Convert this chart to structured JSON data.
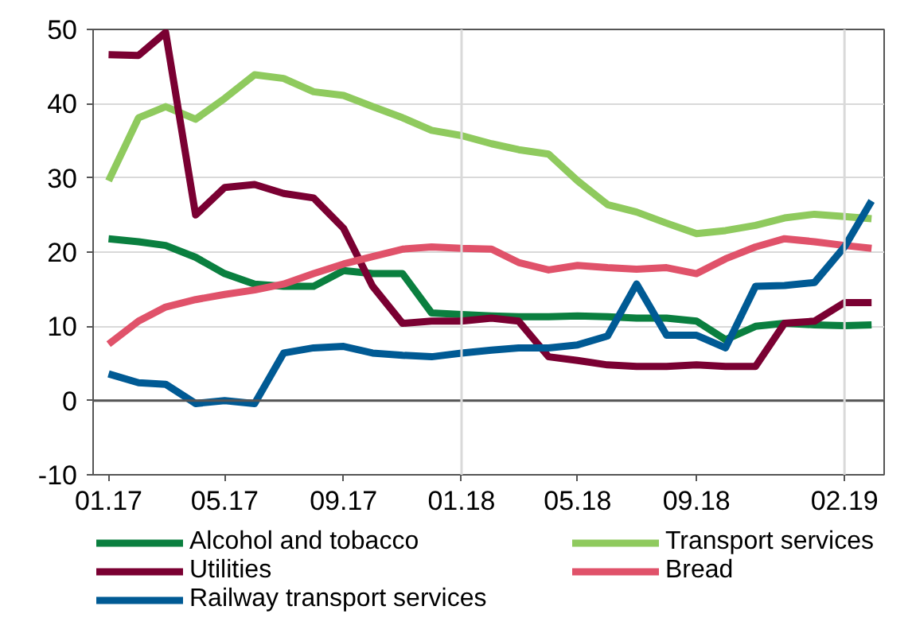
{
  "chart_data": {
    "type": "line",
    "x": [
      "2017-01",
      "2017-02",
      "2017-03",
      "2017-04",
      "2017-05",
      "2017-06",
      "2017-07",
      "2017-08",
      "2017-09",
      "2017-10",
      "2017-11",
      "2017-12",
      "2018-01",
      "2018-02",
      "2018-03",
      "2018-04",
      "2018-05",
      "2018-06",
      "2018-07",
      "2018-08",
      "2018-09",
      "2018-10",
      "2018-11",
      "2018-12",
      "2019-01",
      "2019-02",
      "2019-03"
    ],
    "xlim": [
      "2016-12-16",
      "2019-03-14"
    ],
    "xticks": [
      {
        "value": "2017-01",
        "label": "01.17"
      },
      {
        "value": "2017-05",
        "label": "05.17"
      },
      {
        "value": "2017-09",
        "label": "09.17"
      },
      {
        "value": "2018-01",
        "label": "01.18"
      },
      {
        "value": "2018-05",
        "label": "05.18"
      },
      {
        "value": "2018-09",
        "label": "09.18"
      },
      {
        "value": "2019-02",
        "label": "02.19"
      }
    ],
    "ylim": [
      -10,
      50
    ],
    "yticks": [
      -10,
      0,
      10,
      20,
      30,
      40,
      50
    ],
    "grid": "y",
    "legend": "bottom",
    "marker": "none",
    "line_style": "solid",
    "ref_lines": [
      {
        "axis": "y",
        "value": 0,
        "label": null,
        "color": "#555555"
      },
      {
        "axis": "x",
        "value": "2018-01",
        "label": null,
        "color": "#d9d9d9"
      },
      {
        "axis": "x",
        "value": "2019-02",
        "label": null,
        "color": "#d9d9d9"
      }
    ],
    "series": [
      {
        "name": "Alcohol and tobacco",
        "color": "#0a7f3f",
        "values": [
          21.8,
          21.4,
          20.9,
          19.3,
          17.1,
          15.7,
          15.4,
          15.4,
          17.5,
          17.1,
          17.1,
          11.8,
          11.6,
          11.4,
          11.3,
          11.3,
          11.4,
          11.3,
          11.1,
          11.1,
          10.7,
          8.2,
          10.0,
          10.4,
          10.2,
          10.1,
          10.2
        ]
      },
      {
        "name": "Transport services",
        "color": "#8fca5e",
        "values": [
          29.6,
          38.1,
          39.6,
          37.9,
          40.7,
          43.9,
          43.4,
          41.6,
          41.1,
          39.6,
          38.1,
          36.4,
          35.7,
          34.6,
          33.8,
          33.2,
          29.6,
          26.4,
          25.4,
          23.9,
          22.5,
          22.9,
          23.6,
          24.6,
          25.1,
          24.8,
          24.5
        ]
      },
      {
        "name": "Utilities",
        "color": "#7a0032",
        "values": [
          46.6,
          46.5,
          49.6,
          25.0,
          28.7,
          29.1,
          27.9,
          27.3,
          23.2,
          15.4,
          10.4,
          10.7,
          10.7,
          11.1,
          10.7,
          5.9,
          5.4,
          4.8,
          4.6,
          4.6,
          4.8,
          4.6,
          4.6,
          10.4,
          10.7,
          13.2,
          13.2
        ]
      },
      {
        "name": "Bread",
        "color": "#e0526a",
        "values": [
          7.6,
          10.7,
          12.6,
          13.6,
          14.3,
          14.9,
          15.7,
          17.1,
          18.4,
          19.4,
          20.4,
          20.7,
          20.5,
          20.4,
          18.6,
          17.6,
          18.2,
          17.9,
          17.7,
          17.9,
          17.1,
          19.1,
          20.7,
          21.8,
          21.4,
          20.9,
          20.5
        ]
      },
      {
        "name": "Railway transport services",
        "color": "#005a94",
        "values": [
          3.6,
          2.4,
          2.2,
          -0.4,
          0.0,
          -0.4,
          6.4,
          7.1,
          7.3,
          6.4,
          6.1,
          5.9,
          6.4,
          6.8,
          7.1,
          7.1,
          7.5,
          8.7,
          15.7,
          8.8,
          8.8,
          7.1,
          15.4,
          15.5,
          15.9,
          20.7,
          26.9
        ]
      }
    ]
  }
}
